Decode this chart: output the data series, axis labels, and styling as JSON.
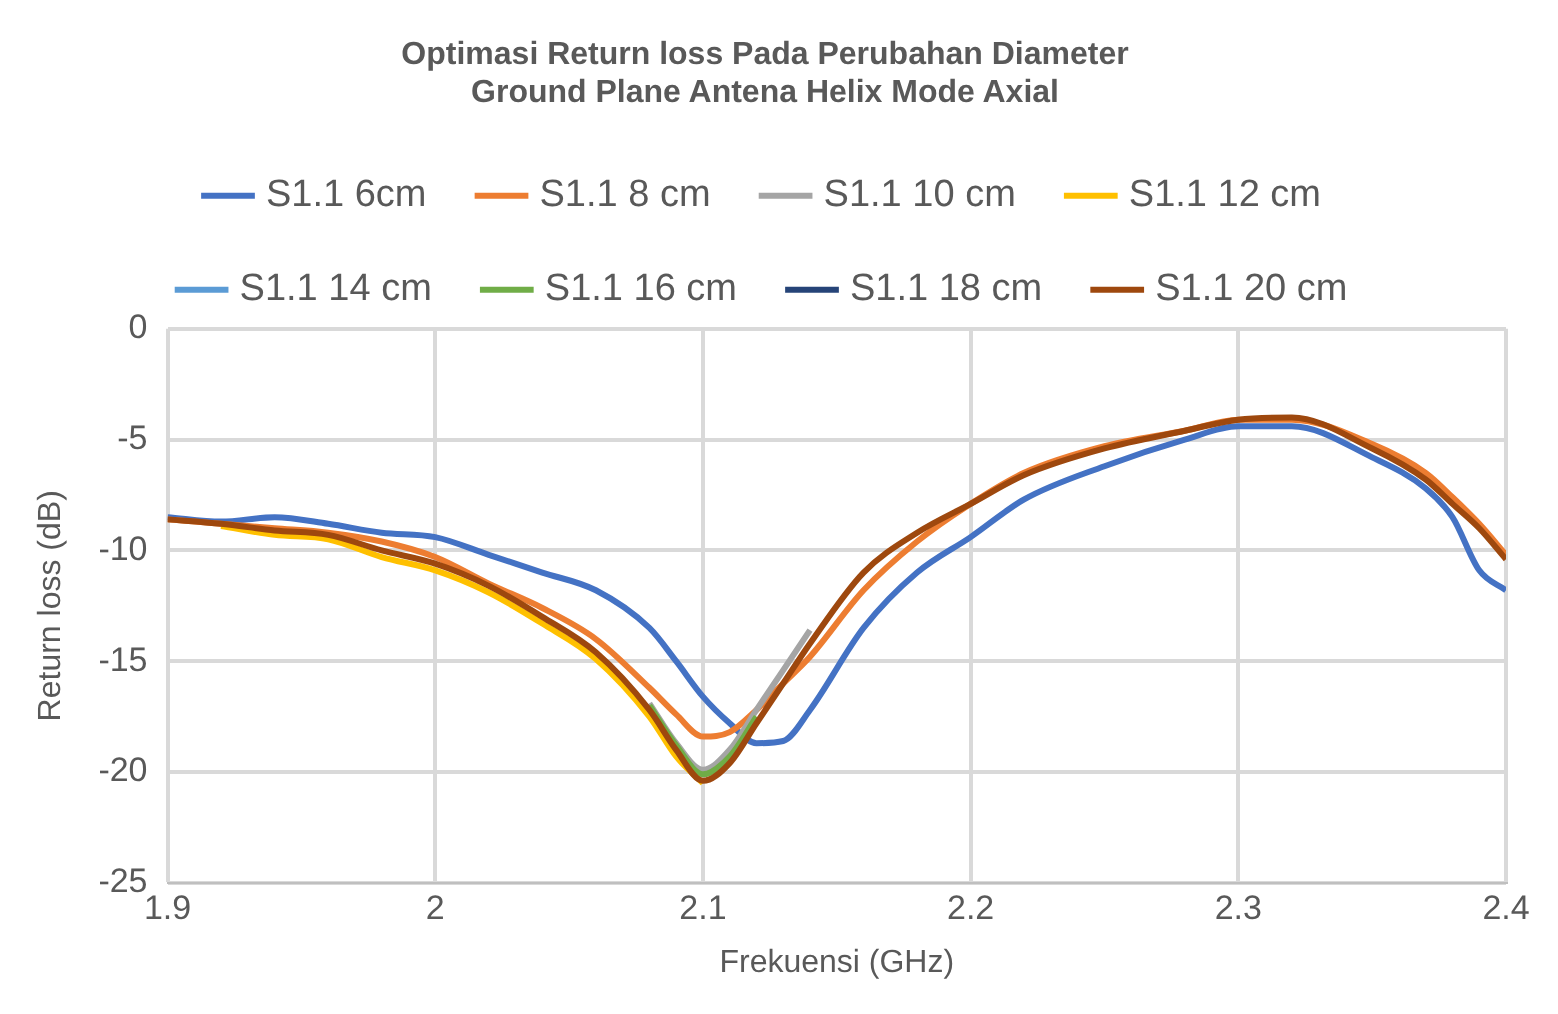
{
  "chart_data": {
    "type": "line",
    "title": "Optimasi Return loss Pada Perubahan Diameter Ground Plane Antena Helix Mode Axial",
    "xlabel": "Frekuensi (GHz)",
    "ylabel": "Return loss (dB)",
    "x": [
      1.9,
      1.92,
      1.94,
      1.96,
      1.98,
      2.0,
      2.02,
      2.04,
      2.06,
      2.08,
      2.09,
      2.1,
      2.11,
      2.12,
      2.13,
      2.14,
      2.16,
      2.18,
      2.2,
      2.22,
      2.25,
      2.28,
      2.3,
      2.32,
      2.35,
      2.37,
      2.38,
      2.39,
      2.4
    ],
    "xlim": [
      1.9,
      2.4
    ],
    "xticks": [
      1.9,
      2,
      2.1,
      2.2,
      2.3,
      2.4
    ],
    "ylim": [
      -25,
      0
    ],
    "yticks": [
      -25,
      -20,
      -15,
      -10,
      -5,
      0
    ],
    "grid": true,
    "legend": "top",
    "marker": "none",
    "line_style": "solid",
    "series": [
      {
        "name": "S1.1 6cm",
        "color": "#4472c4",
        "values": [
          -8.5,
          -8.7,
          -8.5,
          -8.8,
          -9.2,
          -9.4,
          -10.2,
          -11.0,
          -11.8,
          -13.5,
          -15.0,
          -16.6,
          -17.8,
          -18.7,
          -18.6,
          -17.2,
          -13.5,
          -11.0,
          -9.4,
          -7.7,
          -6.2,
          -5.0,
          -4.4,
          -4.4,
          -5.8,
          -7.2,
          -8.5,
          -10.9,
          -11.8
        ]
      },
      {
        "name": "S1.1 8 cm",
        "color": "#ed7d31",
        "values": [
          -8.6,
          -8.8,
          -9.0,
          -9.2,
          -9.6,
          -10.3,
          -11.5,
          -12.6,
          -14.0,
          -16.2,
          -17.4,
          -18.4,
          -18.2,
          -17.2,
          -16.0,
          -14.8,
          -11.8,
          -9.6,
          -7.9,
          -6.5,
          -5.3,
          -4.6,
          -4.1,
          -4.1,
          -5.2,
          -6.5,
          -7.6,
          -8.8,
          -10.2
        ]
      },
      {
        "name": "S1.1 10 cm",
        "color": "#a5a5a5",
        "values": [
          null,
          null,
          null,
          null,
          null,
          null,
          null,
          null,
          null,
          -16.9,
          -18.7,
          -19.9,
          -19.0,
          -17.2,
          -15.4,
          -13.6,
          null,
          null,
          null,
          null,
          null,
          null,
          null,
          null,
          null,
          null,
          null,
          null,
          null
        ]
      },
      {
        "name": "S1.1 12 cm",
        "color": "#ffc000",
        "values": [
          null,
          -8.9,
          -9.3,
          -9.5,
          -10.3,
          -10.9,
          -11.9,
          -13.3,
          -14.9,
          -17.5,
          -19.3,
          -20.5,
          null,
          null,
          null,
          null,
          null,
          null,
          null,
          null,
          null,
          null,
          null,
          null,
          null,
          null,
          null,
          null,
          null
        ]
      },
      {
        "name": "S1.1 14 cm",
        "color": "#5b9bd5",
        "values": [
          null,
          null,
          null,
          null,
          null,
          null,
          null,
          null,
          null,
          null,
          null,
          null,
          null,
          null,
          null,
          null,
          null,
          null,
          null,
          null,
          null,
          null,
          null,
          null,
          null,
          null,
          null,
          null,
          null
        ]
      },
      {
        "name": "S1.1 16 cm",
        "color": "#70ad47",
        "values": [
          null,
          null,
          null,
          null,
          null,
          null,
          null,
          null,
          null,
          -17.0,
          -18.8,
          -20.1,
          -19.3,
          -17.5,
          null,
          null,
          null,
          null,
          null,
          null,
          null,
          null,
          null,
          null,
          null,
          null,
          null,
          null,
          null
        ]
      },
      {
        "name": "S1.1 18 cm",
        "color": "#264478",
        "values": [
          null,
          null,
          null,
          null,
          null,
          null,
          null,
          null,
          null,
          null,
          null,
          null,
          null,
          null,
          null,
          null,
          null,
          null,
          null,
          null,
          null,
          null,
          null,
          null,
          null,
          null,
          null,
          null,
          null
        ]
      },
      {
        "name": "S1.1 20 cm",
        "color": "#9e480e",
        "values": [
          -8.6,
          -8.8,
          -9.1,
          -9.3,
          -10.0,
          -10.6,
          -11.6,
          -13.0,
          -14.6,
          -17.2,
          -19.0,
          -20.4,
          -19.6,
          -17.8,
          -16.0,
          -14.2,
          -11.0,
          -9.2,
          -7.9,
          -6.6,
          -5.4,
          -4.6,
          -4.1,
          -4.0,
          -5.4,
          -6.8,
          -7.9,
          -9.0,
          -10.4
        ]
      }
    ]
  }
}
